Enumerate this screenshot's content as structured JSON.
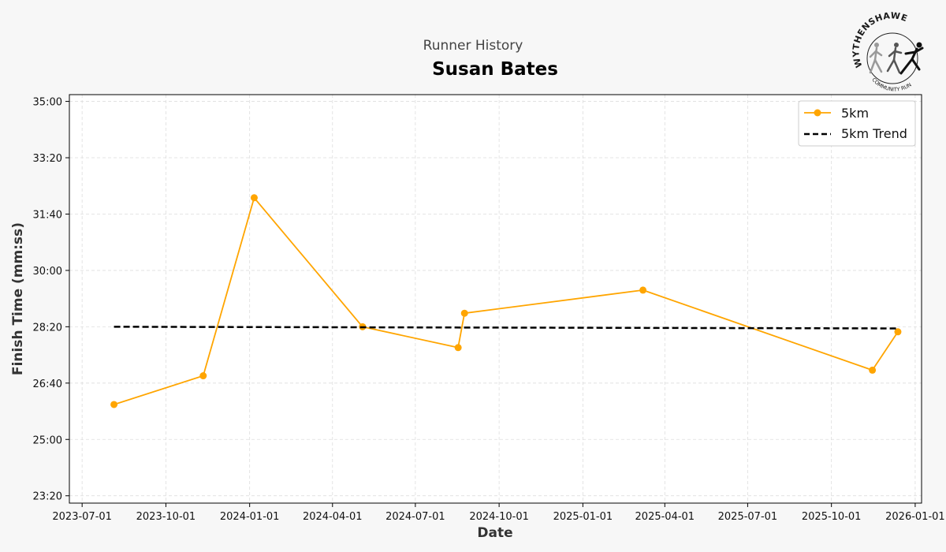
{
  "header": {
    "subtitle": "Runner History",
    "title": "Susan Bates"
  },
  "logo": {
    "name": "wythenshawe-community-run-logo",
    "top_text": "WYTHENSHAWE",
    "bottom_text": "COMMUNITY RUN"
  },
  "chart_data": {
    "type": "line",
    "xlabel": "Date",
    "ylabel": "Finish Time (mm:ss)",
    "x_ticks": [
      "2023-07-01",
      "2023-10-01",
      "2024-01-01",
      "2024-04-01",
      "2024-07-01",
      "2024-10-01",
      "2025-01-01",
      "2025-04-01",
      "2025-07-01",
      "2025-10-01",
      "2026-01-01"
    ],
    "y_ticks": [
      "23:20",
      "25:00",
      "26:40",
      "28:20",
      "30:00",
      "31:40",
      "33:20",
      "35:00"
    ],
    "xlim": [
      "2023-06-17",
      "2026-01-08"
    ],
    "ylim": [
      "23:07",
      "35:12"
    ],
    "grid": true,
    "legend_position": "top-right",
    "colors": {
      "series": "#ffa500",
      "trend": "#000000",
      "grid": "#dddddd"
    },
    "series": [
      {
        "name": "5km",
        "style": "solid line with circle markers",
        "points": [
          {
            "date": "2023-08-05",
            "time": "26:02"
          },
          {
            "date": "2023-11-11",
            "time": "26:53"
          },
          {
            "date": "2024-01-06",
            "time": "32:09"
          },
          {
            "date": "2024-05-04",
            "time": "28:20"
          },
          {
            "date": "2024-08-17",
            "time": "27:43"
          },
          {
            "date": "2024-08-24",
            "time": "28:44"
          },
          {
            "date": "2025-03-08",
            "time": "29:25"
          },
          {
            "date": "2025-11-15",
            "time": "27:03"
          },
          {
            "date": "2025-12-13",
            "time": "28:11"
          }
        ]
      },
      {
        "name": "5km Trend",
        "style": "dashed line",
        "points": [
          {
            "date": "2023-08-05",
            "time": "28:20"
          },
          {
            "date": "2025-12-13",
            "time": "28:17"
          }
        ]
      }
    ]
  }
}
